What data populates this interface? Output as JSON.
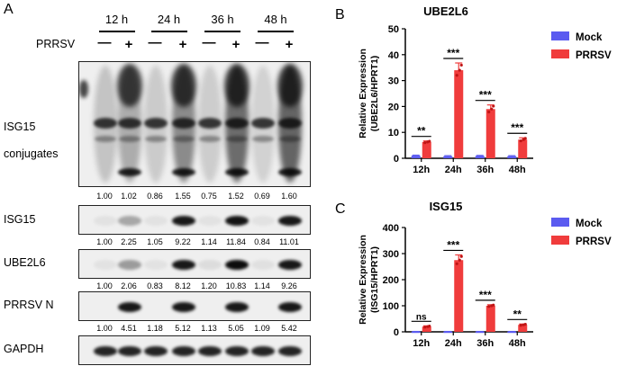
{
  "panel_a": {
    "letter": "A",
    "times": [
      "12 h",
      "24 h",
      "36 h",
      "48 h"
    ],
    "treatment_label": "PRRSV",
    "signs": [
      "—",
      "+",
      "—",
      "+",
      "—",
      "+",
      "—",
      "+"
    ],
    "rows": [
      {
        "name": "ISG15 conjugates",
        "label_lines": [
          "ISG15",
          "conjugates"
        ],
        "ratios": [
          "1.00",
          "1.02",
          "0.86",
          "1.55",
          "0.75",
          "1.52",
          "0.69",
          "1.60"
        ]
      },
      {
        "name": "ISG15",
        "label_lines": [
          "ISG15"
        ],
        "ratios": [
          "1.00",
          "2.25",
          "1.05",
          "9.22",
          "1.14",
          "11.84",
          "0.84",
          "11.01"
        ]
      },
      {
        "name": "UBE2L6",
        "label_lines": [
          "UBE2L6"
        ],
        "ratios": [
          "1.00",
          "2.06",
          "0.83",
          "8.12",
          "1.20",
          "10.83",
          "1.14",
          "9.26"
        ]
      },
      {
        "name": "PRRSV N",
        "label_lines": [
          "PRRSV N"
        ],
        "ratios": [
          "1.00",
          "4.51",
          "1.18",
          "5.12",
          "1.13",
          "5.05",
          "1.09",
          "5.42"
        ]
      },
      {
        "name": "GAPDH",
        "label_lines": [
          "GAPDH"
        ],
        "ratios": []
      }
    ]
  },
  "panel_b": {
    "letter": "B"
  },
  "panel_c": {
    "letter": "C"
  },
  "chart_data": [
    {
      "type": "bar",
      "title": "UBE2L6",
      "ylabel_lines": [
        "Relative Expression",
        "(UBE2L6/HPRT1)"
      ],
      "xlabel": "",
      "categories": [
        "12h",
        "24h",
        "36h",
        "48h"
      ],
      "ylim": [
        0,
        50
      ],
      "yticks": [
        0,
        10,
        20,
        30,
        40,
        50
      ],
      "legend_placement": "top-right",
      "series": [
        {
          "name": "Mock",
          "color": "#5b5bf0",
          "values": [
            1.0,
            0.8,
            0.9,
            0.8
          ],
          "errors": [
            0.2,
            0.2,
            0.2,
            0.2
          ]
        },
        {
          "name": "PRRSV",
          "color": "#f03c3c",
          "values": [
            6.3,
            34.0,
            19.0,
            7.2
          ],
          "errors": [
            0.4,
            2.8,
            1.6,
            0.7
          ]
        }
      ],
      "significance": [
        "**",
        "***",
        "***",
        "***"
      ]
    },
    {
      "type": "bar",
      "title": "ISG15",
      "ylabel_lines": [
        "Relative Expression",
        "(ISG15/HPRT1)"
      ],
      "xlabel": "",
      "categories": [
        "12h",
        "24h",
        "36h",
        "48h"
      ],
      "ylim": [
        0,
        400
      ],
      "yticks": [
        0,
        100,
        200,
        300,
        400
      ],
      "legend_placement": "top-right",
      "series": [
        {
          "name": "Mock",
          "color": "#5b5bf0",
          "values": [
            1,
            1,
            1,
            1
          ],
          "errors": [
            0.5,
            0.5,
            0.5,
            0.5
          ]
        },
        {
          "name": "PRRSV",
          "color": "#f03c3c",
          "values": [
            20,
            275,
            100,
            27
          ],
          "errors": [
            3,
            20,
            4,
            3
          ]
        }
      ],
      "significance": [
        "ns",
        "***",
        "***",
        "**"
      ]
    }
  ]
}
